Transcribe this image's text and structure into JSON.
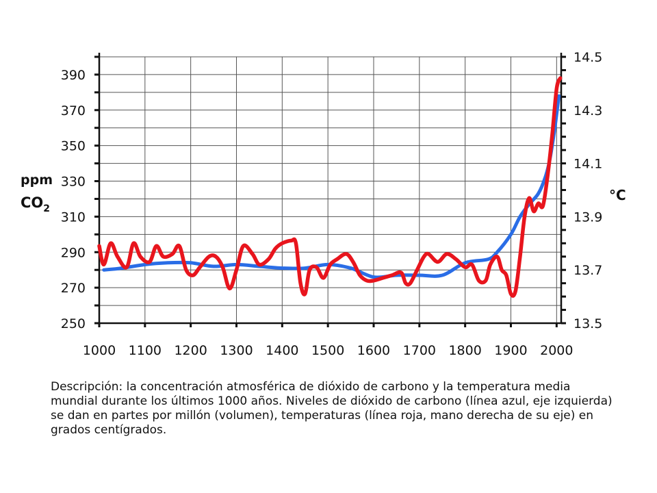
{
  "chart_data": {
    "type": "line",
    "xlabel": "",
    "xlim": [
      1000,
      2010
    ],
    "x_ticks": [
      "1000",
      "1100",
      "1200",
      "1300",
      "1400",
      "1500",
      "1600",
      "1700",
      "1800",
      "1900",
      "2000"
    ],
    "left_axis": {
      "title_line1": "ppm",
      "title_line2_main": "CO",
      "title_line2_sub": "2",
      "ylim": [
        250,
        400
      ],
      "ticks": [
        "250",
        "270",
        "290",
        "310",
        "330",
        "350",
        "370",
        "390"
      ]
    },
    "right_axis": {
      "title": "°C",
      "ylim": [
        13.5,
        14.5
      ],
      "ticks": [
        "13.5",
        "13.7",
        "13.9",
        "14.1",
        "14.3",
        "14.5"
      ]
    },
    "grid": true,
    "series": [
      {
        "axis": "left",
        "color": "#2a6de6",
        "x": [
          1010,
          1050,
          1100,
          1150,
          1200,
          1250,
          1300,
          1350,
          1400,
          1450,
          1500,
          1550,
          1600,
          1650,
          1700,
          1750,
          1800,
          1850,
          1870,
          1900,
          1920,
          1940,
          1960,
          1975,
          1985,
          1995,
          2005
        ],
        "y": [
          280,
          281,
          283,
          284,
          284,
          282,
          283,
          282,
          281,
          281,
          283,
          281,
          276,
          277,
          277,
          277,
          284,
          286,
          290,
          300,
          310,
          317,
          323,
          332,
          342,
          358,
          378
        ]
      },
      {
        "axis": "right",
        "color": "#e8151d",
        "x": [
          1000,
          1010,
          1025,
          1040,
          1060,
          1075,
          1090,
          1110,
          1125,
          1140,
          1160,
          1175,
          1190,
          1205,
          1220,
          1240,
          1255,
          1270,
          1285,
          1300,
          1315,
          1335,
          1350,
          1370,
          1385,
          1400,
          1420,
          1430,
          1440,
          1450,
          1460,
          1475,
          1490,
          1505,
          1520,
          1540,
          1555,
          1570,
          1585,
          1600,
          1620,
          1640,
          1660,
          1670,
          1680,
          1695,
          1710,
          1720,
          1740,
          1760,
          1780,
          1800,
          1815,
          1830,
          1845,
          1855,
          1870,
          1880,
          1890,
          1900,
          1910,
          1920,
          1930,
          1940,
          1950,
          1960,
          1970,
          1980,
          1990,
          2000,
          2008
        ],
        "y": [
          13.79,
          13.72,
          13.8,
          13.75,
          13.71,
          13.8,
          13.75,
          13.73,
          13.79,
          13.75,
          13.76,
          13.79,
          13.7,
          13.68,
          13.71,
          13.75,
          13.75,
          13.71,
          13.63,
          13.7,
          13.79,
          13.76,
          13.72,
          13.74,
          13.78,
          13.8,
          13.81,
          13.8,
          13.65,
          13.61,
          13.7,
          13.71,
          13.67,
          13.72,
          13.74,
          13.76,
          13.73,
          13.68,
          13.66,
          13.66,
          13.67,
          13.68,
          13.69,
          13.65,
          13.65,
          13.7,
          13.75,
          13.76,
          13.73,
          13.76,
          13.74,
          13.71,
          13.72,
          13.66,
          13.66,
          13.72,
          13.75,
          13.7,
          13.68,
          13.61,
          13.62,
          13.75,
          13.9,
          13.97,
          13.92,
          13.95,
          13.94,
          14.05,
          14.2,
          14.38,
          14.42
        ]
      }
    ]
  },
  "caption": "Descripción: la concentración atmosférica de dióxido de carbono y la temperatura media mundial durante los últimos 1000 años. Niveles de dióxido de carbono (línea azul, eje izquierda) se dan en partes por millón (volumen), temperaturas (línea roja, mano derecha de su eje) en grados centígrados."
}
